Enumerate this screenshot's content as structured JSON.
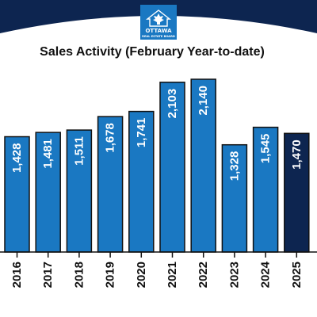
{
  "colors": {
    "banner": "#0d2550",
    "logo_bg": "#1a78c2",
    "bar_default": "#1a78c2",
    "bar_highlight": "#0d2550",
    "bar_stroke": "#111111",
    "axis": "#111111"
  },
  "logo": {
    "icon": "maple-leaf-house-icon",
    "line1": "OTTAWA",
    "line2": "REAL ESTATE BOARD"
  },
  "chart_data": {
    "type": "bar",
    "title": "Sales Activity (February Year-to-date)",
    "categories": [
      "2016",
      "2017",
      "2018",
      "2019",
      "2020",
      "2021",
      "2022",
      "2023",
      "2024",
      "2025"
    ],
    "values": [
      1428,
      1481,
      1511,
      1678,
      1741,
      2103,
      2140,
      1328,
      1545,
      1470
    ],
    "value_labels": [
      "1,428",
      "1,481",
      "1,511",
      "1,678",
      "1,741",
      "2,103",
      "2,140",
      "1,328",
      "1,545",
      "1,470"
    ],
    "highlight_index": 9,
    "ylim": [
      0,
      2140
    ],
    "grid": false,
    "legend": "none",
    "xlabel": "",
    "ylabel": ""
  }
}
